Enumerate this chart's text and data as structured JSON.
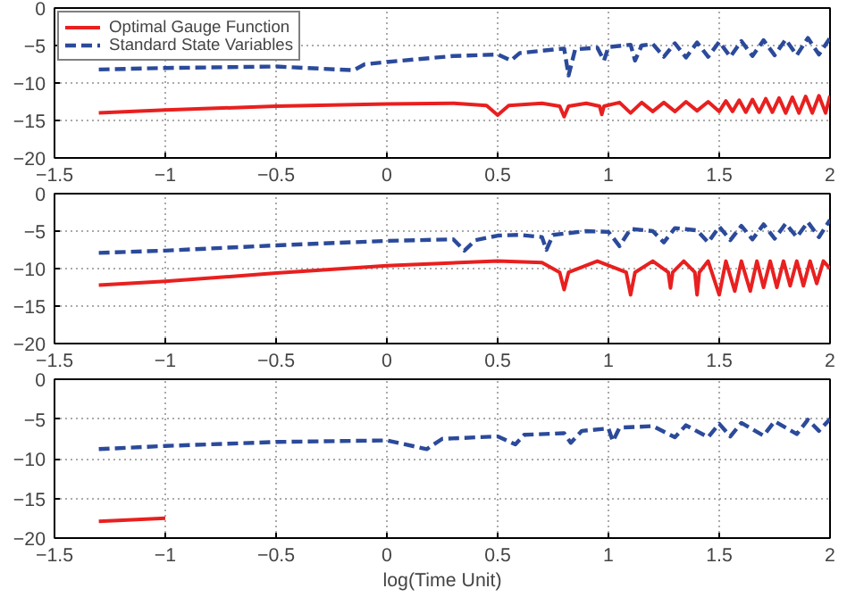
{
  "chart_data": [
    {
      "type": "line",
      "xlim": [
        -1.5,
        2
      ],
      "ylim": [
        -20,
        0
      ],
      "xticks": [
        -1.5,
        -1,
        -0.5,
        0,
        0.5,
        1,
        1.5,
        2
      ],
      "yticks": [
        -20,
        -15,
        -10,
        -5,
        0
      ],
      "grid": true,
      "legend": "top left",
      "series": [
        {
          "name": "Optimal Gauge Function",
          "color": "#e8201f",
          "line_style": "solid",
          "x": [
            -1.3,
            -1,
            -0.5,
            0,
            0.3,
            0.45,
            0.5,
            0.55,
            0.7,
            0.78,
            0.8,
            0.82,
            0.9,
            0.96,
            0.97,
            0.98,
            1.05,
            1.1,
            1.15,
            1.2,
            1.25,
            1.3,
            1.35,
            1.4,
            1.45,
            1.5,
            1.53,
            1.56,
            1.59,
            1.62,
            1.65,
            1.68,
            1.71,
            1.74,
            1.77,
            1.8,
            1.83,
            1.86,
            1.89,
            1.92,
            1.95,
            1.98,
            2.0
          ],
          "values": [
            -14,
            -13.6,
            -13.1,
            -12.8,
            -12.7,
            -13,
            -14.3,
            -13,
            -12.7,
            -13.1,
            -14.5,
            -13.1,
            -12.7,
            -13.1,
            -14.2,
            -13.1,
            -12.6,
            -14,
            -12.6,
            -13.8,
            -12.6,
            -13.8,
            -12.5,
            -13.7,
            -12.5,
            -13.8,
            -12.4,
            -13.8,
            -12.3,
            -13.9,
            -12.2,
            -13.9,
            -12.1,
            -13.9,
            -12,
            -14,
            -11.9,
            -14,
            -11.8,
            -14,
            -11.7,
            -14,
            -11.7
          ]
        },
        {
          "name": "Standard State Variables",
          "color": "#2b4a9a",
          "line_style": "dashed",
          "x": [
            -1.3,
            -1,
            -0.5,
            -0.15,
            -0.1,
            0,
            0.3,
            0.5,
            0.56,
            0.6,
            0.8,
            0.82,
            0.85,
            0.95,
            0.98,
            1.0,
            1.1,
            1.12,
            1.15,
            1.2,
            1.25,
            1.3,
            1.35,
            1.4,
            1.45,
            1.5,
            1.55,
            1.6,
            1.65,
            1.7,
            1.75,
            1.8,
            1.85,
            1.9,
            1.95,
            2.0
          ],
          "values": [
            -8.2,
            -8,
            -7.8,
            -8.3,
            -7.5,
            -7.2,
            -6.4,
            -6.2,
            -7,
            -6,
            -5.4,
            -9,
            -5.5,
            -5.3,
            -7,
            -5.2,
            -4.9,
            -7,
            -5,
            -4.8,
            -6.5,
            -4.7,
            -6.6,
            -4.6,
            -6.5,
            -4.5,
            -6.5,
            -4.4,
            -6.4,
            -4.3,
            -6.3,
            -4.2,
            -6.3,
            -4.0,
            -6.2,
            -4.0
          ]
        }
      ]
    },
    {
      "type": "line",
      "xlim": [
        -1.5,
        2
      ],
      "ylim": [
        -20,
        0
      ],
      "xticks": [
        -1.5,
        -1,
        -0.5,
        0,
        0.5,
        1,
        1.5,
        2
      ],
      "yticks": [
        -20,
        -15,
        -10,
        -5,
        0
      ],
      "grid": true,
      "series": [
        {
          "color": "#e8201f",
          "line_style": "solid",
          "x": [
            -1.3,
            -1,
            -0.5,
            0,
            0.5,
            0.7,
            0.78,
            0.8,
            0.82,
            0.95,
            1.08,
            1.1,
            1.12,
            1.2,
            1.27,
            1.28,
            1.29,
            1.34,
            1.39,
            1.4,
            1.41,
            1.45,
            1.5,
            1.53,
            1.57,
            1.6,
            1.64,
            1.67,
            1.7,
            1.73,
            1.76,
            1.79,
            1.82,
            1.85,
            1.88,
            1.91,
            1.94,
            1.97,
            2.0
          ],
          "values": [
            -12.2,
            -11.7,
            -10.6,
            -9.6,
            -9,
            -9.2,
            -10.5,
            -12.8,
            -10.5,
            -9,
            -10.5,
            -13.5,
            -10.5,
            -9,
            -10.5,
            -12.6,
            -10.5,
            -9,
            -10.5,
            -13.5,
            -10.5,
            -9,
            -13.5,
            -9,
            -13,
            -9,
            -13,
            -9,
            -12.5,
            -9,
            -12.5,
            -9,
            -12.3,
            -9,
            -12.3,
            -9,
            -12,
            -9,
            -10
          ]
        },
        {
          "color": "#2b4a9a",
          "line_style": "dashed",
          "x": [
            -1.3,
            -1,
            -0.5,
            0,
            0.3,
            0.35,
            0.4,
            0.5,
            0.6,
            0.7,
            0.72,
            0.75,
            0.9,
            1.0,
            1.05,
            1.1,
            1.2,
            1.25,
            1.3,
            1.4,
            1.45,
            1.5,
            1.55,
            1.6,
            1.65,
            1.7,
            1.75,
            1.8,
            1.85,
            1.9,
            1.95,
            2.0
          ],
          "values": [
            -7.9,
            -7.6,
            -6.9,
            -6.3,
            -6.1,
            -7.6,
            -6.2,
            -5.6,
            -5.5,
            -5.8,
            -7.5,
            -5.5,
            -5,
            -5.1,
            -7,
            -4.7,
            -5,
            -6.5,
            -4.6,
            -4.9,
            -6.5,
            -4.4,
            -6.2,
            -4.3,
            -6.1,
            -4.1,
            -6,
            -4,
            -5.8,
            -3.8,
            -5.8,
            -3.5
          ]
        }
      ]
    },
    {
      "type": "line",
      "xlabel": "log(Time Unit)",
      "xlim": [
        -1.5,
        2
      ],
      "ylim": [
        -20,
        0
      ],
      "xticks": [
        -1.5,
        -1,
        -0.5,
        0,
        0.5,
        1,
        1.5,
        2
      ],
      "yticks": [
        -20,
        -15,
        -10,
        -5,
        0
      ],
      "grid": true,
      "series": [
        {
          "color": "#e8201f",
          "line_style": "solid",
          "x": [
            -1.3,
            -1
          ],
          "values": [
            -17.9,
            -17.5
          ]
        },
        {
          "color": "#2b4a9a",
          "line_style": "dashed",
          "x": [
            -1.3,
            -1,
            -0.5,
            0,
            0.18,
            0.25,
            0.5,
            0.58,
            0.62,
            0.8,
            0.83,
            0.88,
            1.0,
            1.02,
            1.05,
            1.2,
            1.3,
            1.35,
            1.45,
            1.5,
            1.55,
            1.6,
            1.7,
            1.75,
            1.85,
            1.9,
            1.95,
            2.0
          ],
          "values": [
            -8.8,
            -8.4,
            -7.9,
            -7.7,
            -8.8,
            -7.5,
            -7.2,
            -8.2,
            -7,
            -6.8,
            -8,
            -6.5,
            -6.2,
            -7.8,
            -6.1,
            -5.9,
            -7.3,
            -5.8,
            -7.3,
            -5.6,
            -7.2,
            -5.5,
            -7.1,
            -5.3,
            -6.9,
            -5.1,
            -6.5,
            -5.0
          ]
        }
      ]
    }
  ]
}
